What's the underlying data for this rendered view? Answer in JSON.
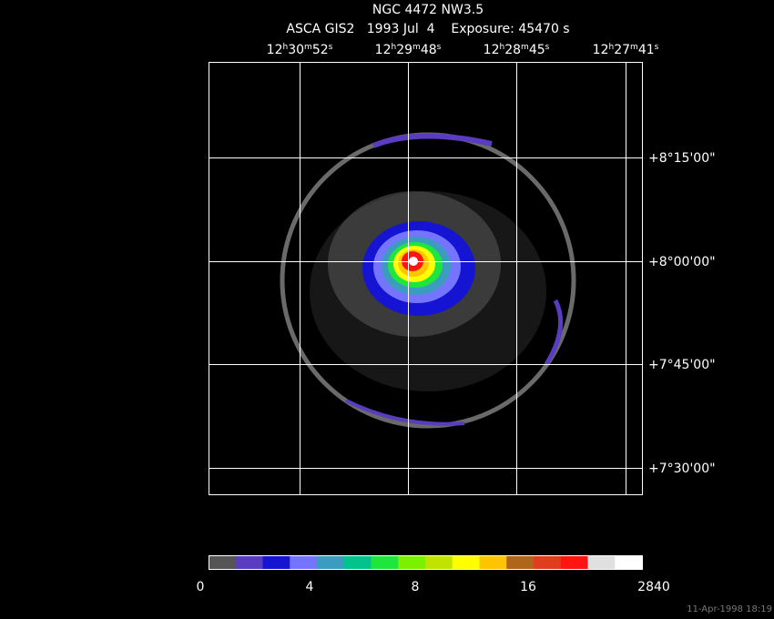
{
  "header": {
    "title": "NGC 4472 NW3.5",
    "subtitle": "ASCA GIS2   1993 Jul  4    Exposure: 45470 s"
  },
  "ra_labels": [
    "12h30m52s",
    "12h29m48s",
    "12h28m45s",
    "12h27m41s"
  ],
  "dec_labels": [
    "+8°15'00\"",
    "+8°00'00\"",
    "+7°45'00\"",
    "+7°30'00\""
  ],
  "colorbar": {
    "colors": [
      "#555555",
      "#5a3cc0",
      "#1414d2",
      "#7474ff",
      "#3c9cc0",
      "#00c48c",
      "#1ee63c",
      "#7cf000",
      "#c0e400",
      "#ffff00",
      "#ffc400",
      "#b0661a",
      "#e03c20",
      "#ff1414",
      "#e0e0e0",
      "#ffffff"
    ],
    "labels": [
      "0",
      "4",
      "8",
      "16",
      "2840"
    ]
  },
  "footer": "11-Apr-1998 18:19"
}
